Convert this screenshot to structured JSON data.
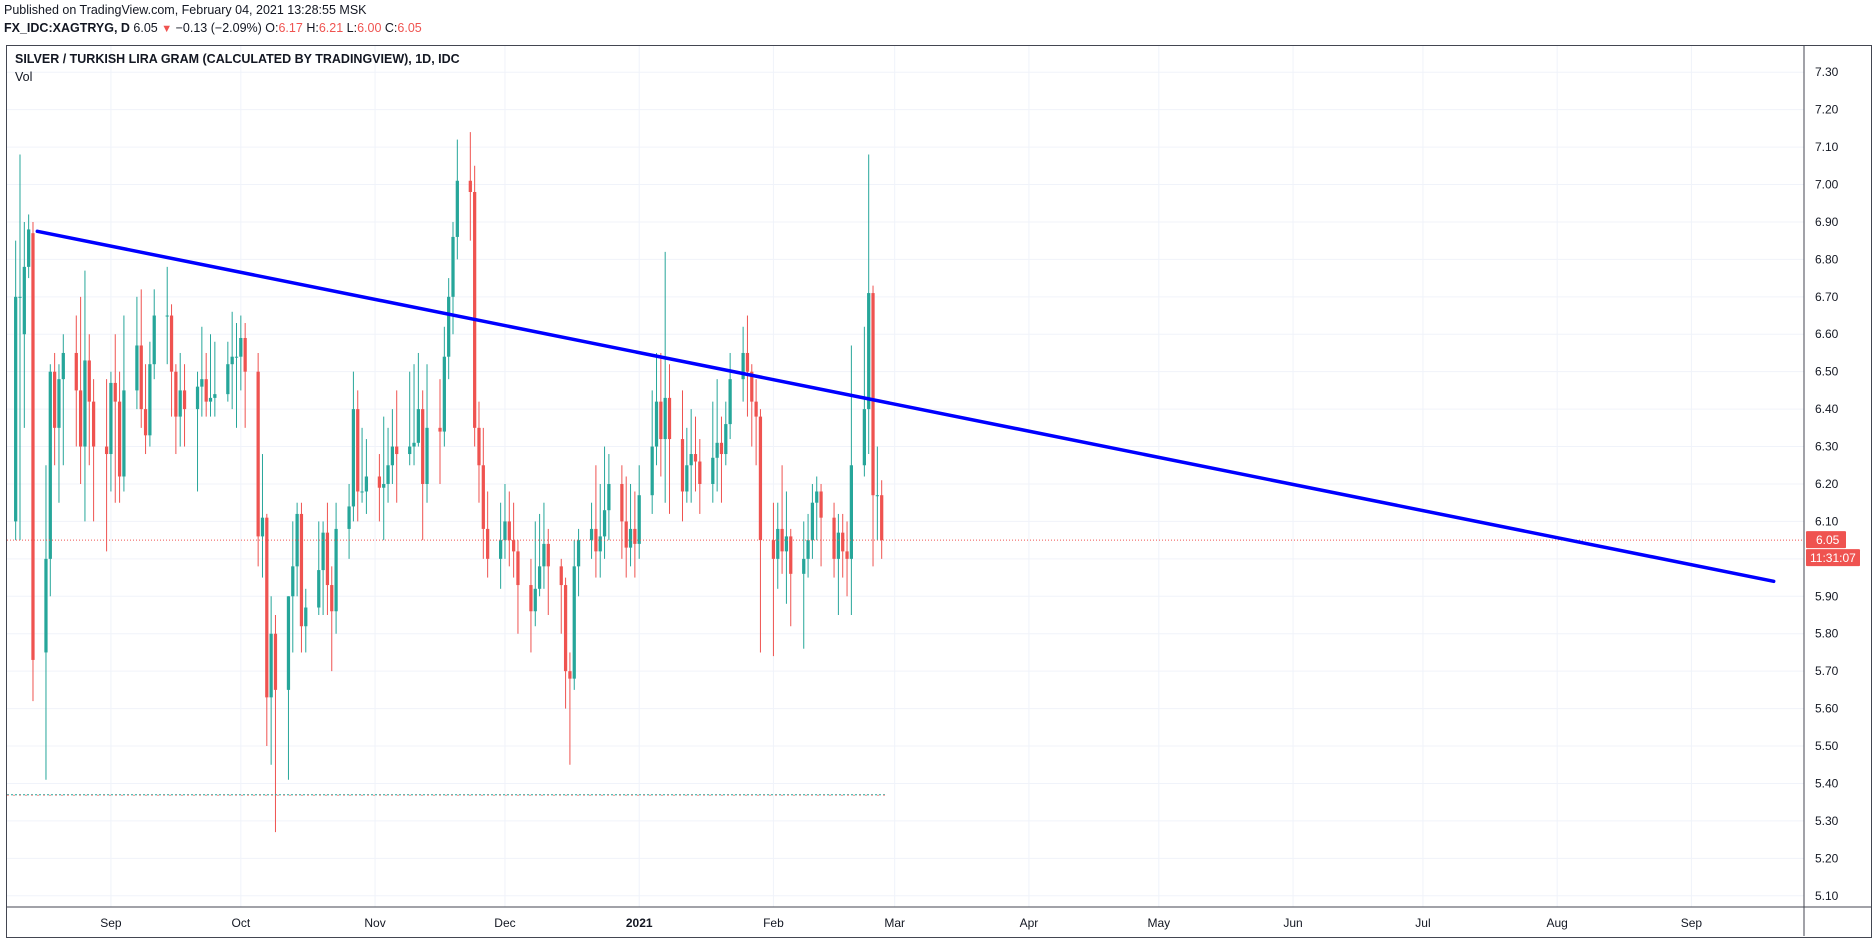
{
  "header": {
    "published": "Published on TradingView.com, February 04, 2021 13:28:55 MSK",
    "symbol": "FX_IDC:XAGTRYG, D",
    "last": "6.05",
    "change": "−0.13 (−2.09%)",
    "o_label": "O:",
    "o_val": "6.17",
    "h_label": "H:",
    "h_val": "6.21",
    "l_label": "L:",
    "l_val": "6.00",
    "c_label": "C:",
    "c_val": "6.05"
  },
  "chart_title": "SILVER / TURKISH LIRA GRAM (CALCULATED BY TRADINGVIEW), 1D, IDC",
  "indicator_label": "Vol",
  "colors": {
    "up": "#26a69a",
    "down": "#ef5350",
    "trendline": "#0000ff",
    "grid": "#f0f3fa",
    "price_tag": "#ef5350"
  },
  "chart_data": {
    "type": "candlestick",
    "title": "SILVER / TURKISH LIRA GRAM (CALCULATED BY TRADINGVIEW), 1D, IDC",
    "y_ticks": [
      "7.30",
      "7.20",
      "7.10",
      "7.00",
      "6.90",
      "6.80",
      "6.70",
      "6.60",
      "6.50",
      "6.40",
      "6.30",
      "6.20",
      "6.10",
      "6.00",
      "5.90",
      "5.80",
      "5.70",
      "5.60",
      "5.50",
      "5.40",
      "5.30",
      "5.20",
      "5.10"
    ],
    "ylim": [
      5.07,
      7.37
    ],
    "x_ticks": [
      {
        "label": "Sep",
        "date": "2020-09-01",
        "bold": false
      },
      {
        "label": "Oct",
        "date": "2020-10-01",
        "bold": false
      },
      {
        "label": "Nov",
        "date": "2020-11-01",
        "bold": false
      },
      {
        "label": "Dec",
        "date": "2020-12-01",
        "bold": false
      },
      {
        "label": "2021",
        "date": "2021-01-01",
        "bold": true
      },
      {
        "label": "Feb",
        "date": "2021-02-01",
        "bold": false
      },
      {
        "label": "Mar",
        "date": "2021-03-01",
        "bold": false
      },
      {
        "label": "Apr",
        "date": "2021-04-01",
        "bold": false
      },
      {
        "label": "May",
        "date": "2021-05-01",
        "bold": false
      },
      {
        "label": "Jun",
        "date": "2021-06-01",
        "bold": false
      },
      {
        "label": "Jul",
        "date": "2021-07-01",
        "bold": false
      },
      {
        "label": "Aug",
        "date": "2021-08-01",
        "bold": false
      },
      {
        "label": "Sep",
        "date": "2021-09-01",
        "bold": false
      }
    ],
    "xlim": [
      "2020-08-08",
      "2021-09-27"
    ],
    "first_candle_date": "2020-08-10",
    "candles": [
      [
        6.1,
        6.7,
        6.85,
        6.05
      ],
      [
        6.7,
        6.7,
        7.08,
        6.05
      ],
      [
        6.6,
        6.78,
        6.9,
        6.35
      ],
      [
        6.78,
        6.88,
        6.92,
        6.75
      ],
      [
        6.87,
        5.73,
        6.9,
        5.62
      ],
      [
        5.75,
        6.0,
        6.25,
        5.41
      ],
      [
        6.0,
        6.5,
        6.52,
        5.9
      ],
      [
        6.5,
        6.35,
        6.55,
        6.25
      ],
      [
        6.35,
        6.48,
        6.52,
        6.15
      ],
      [
        6.48,
        6.55,
        6.6,
        6.25
      ],
      [
        6.55,
        6.45,
        6.65,
        6.3
      ],
      [
        6.45,
        6.3,
        6.7,
        6.2
      ],
      [
        6.3,
        6.53,
        6.77,
        6.1
      ],
      [
        6.53,
        6.42,
        6.6,
        6.25
      ],
      [
        6.42,
        6.3,
        6.48,
        6.1
      ],
      [
        6.3,
        6.28,
        6.48,
        6.02
      ],
      [
        6.28,
        6.47,
        6.5,
        6.18
      ],
      [
        6.47,
        6.42,
        6.6,
        6.15
      ],
      [
        6.42,
        6.22,
        6.5,
        6.15
      ],
      [
        6.22,
        6.45,
        6.65,
        6.18
      ],
      [
        6.45,
        6.57,
        6.7,
        6.4
      ],
      [
        6.57,
        6.4,
        6.72,
        6.35
      ],
      [
        6.4,
        6.33,
        6.52,
        6.28
      ],
      [
        6.33,
        6.52,
        6.58,
        6.3
      ],
      [
        6.52,
        6.65,
        6.72,
        6.48
      ],
      [
        6.65,
        6.65,
        6.78,
        6.52
      ],
      [
        6.65,
        6.5,
        6.68,
        6.38
      ],
      [
        6.5,
        6.38,
        6.52,
        6.28
      ],
      [
        6.38,
        6.45,
        6.55,
        6.3
      ],
      [
        6.45,
        6.4,
        6.52,
        6.3
      ],
      [
        6.4,
        6.46,
        6.5,
        6.18
      ],
      [
        6.46,
        6.48,
        6.62,
        6.38
      ],
      [
        6.48,
        6.42,
        6.55,
        6.38
      ],
      [
        6.42,
        6.43,
        6.6,
        6.38
      ],
      [
        6.43,
        6.44,
        6.58,
        6.38
      ],
      [
        6.44,
        6.52,
        6.58,
        6.42
      ],
      [
        6.52,
        6.54,
        6.66,
        6.4
      ],
      [
        6.54,
        6.54,
        6.63,
        6.35
      ],
      [
        6.54,
        6.59,
        6.65,
        6.45
      ],
      [
        6.59,
        6.5,
        6.63,
        6.35
      ],
      [
        6.5,
        6.06,
        6.55,
        5.98
      ],
      [
        6.06,
        6.11,
        6.28,
        5.95
      ],
      [
        6.11,
        5.63,
        6.12,
        5.5
      ],
      [
        5.63,
        5.8,
        5.9,
        5.45
      ],
      [
        5.8,
        5.65,
        5.85,
        5.27
      ],
      [
        5.65,
        5.9,
        5.9,
        5.41
      ],
      [
        5.9,
        5.98,
        6.1,
        5.75
      ],
      [
        5.98,
        6.12,
        6.15,
        5.9
      ],
      [
        6.12,
        5.82,
        6.15,
        5.75
      ],
      [
        5.82,
        5.87,
        5.92,
        5.75
      ],
      [
        5.87,
        5.97,
        6.1,
        5.85
      ],
      [
        5.97,
        6.07,
        6.1,
        5.85
      ],
      [
        6.07,
        5.93,
        6.15,
        5.85
      ],
      [
        5.93,
        5.86,
        5.98,
        5.7
      ],
      [
        5.86,
        6.08,
        6.15,
        5.8
      ],
      [
        6.08,
        6.14,
        6.2,
        6.0
      ],
      [
        6.14,
        6.4,
        6.5,
        6.1
      ],
      [
        6.4,
        6.18,
        6.45,
        6.1
      ],
      [
        6.18,
        6.18,
        6.35,
        6.15
      ],
      [
        6.18,
        6.22,
        6.32,
        6.12
      ],
      [
        6.22,
        6.19,
        6.28,
        6.1
      ],
      [
        6.19,
        6.2,
        6.38,
        6.05
      ],
      [
        6.2,
        6.25,
        6.35,
        6.15
      ],
      [
        6.25,
        6.3,
        6.4,
        6.2
      ],
      [
        6.3,
        6.28,
        6.45,
        6.15
      ],
      [
        6.28,
        6.3,
        6.5,
        6.25
      ],
      [
        6.3,
        6.31,
        6.52,
        6.25
      ],
      [
        6.31,
        6.4,
        6.55,
        6.3
      ],
      [
        6.4,
        6.2,
        6.45,
        6.05
      ],
      [
        6.2,
        6.35,
        6.52,
        6.15
      ],
      [
        6.35,
        6.34,
        6.48,
        6.2
      ],
      [
        6.34,
        6.54,
        6.62,
        6.3
      ],
      [
        6.54,
        6.7,
        6.75,
        6.48
      ],
      [
        6.7,
        6.86,
        6.9,
        6.6
      ],
      [
        6.86,
        7.01,
        7.12,
        6.8
      ],
      [
        7.01,
        6.98,
        7.14,
        6.85
      ],
      [
        6.98,
        6.35,
        7.05,
        6.3
      ],
      [
        6.35,
        6.25,
        6.42,
        6.15
      ],
      [
        6.25,
        6.08,
        6.35,
        6.0
      ],
      [
        6.08,
        6.0,
        6.18,
        5.95
      ],
      [
        6.0,
        6.05,
        6.15,
        5.92
      ],
      [
        6.05,
        6.1,
        6.2,
        6.0
      ],
      [
        6.1,
        6.05,
        6.18,
        5.98
      ],
      [
        6.05,
        6.02,
        6.15,
        5.95
      ],
      [
        6.02,
        5.93,
        6.05,
        5.8
      ],
      [
        5.93,
        5.86,
        6.0,
        5.75
      ],
      [
        5.86,
        5.92,
        6.1,
        5.82
      ],
      [
        5.92,
        5.98,
        6.12,
        5.9
      ],
      [
        5.98,
        6.04,
        6.15,
        5.92
      ],
      [
        6.04,
        5.98,
        6.08,
        5.85
      ],
      [
        5.98,
        5.93,
        6.0,
        5.8
      ],
      [
        5.93,
        5.7,
        5.95,
        5.6
      ],
      [
        5.7,
        5.68,
        5.75,
        5.45
      ],
      [
        5.68,
        5.98,
        6.05,
        5.65
      ],
      [
        5.98,
        6.05,
        6.08,
        5.9
      ],
      [
        6.05,
        6.08,
        6.15,
        6.0
      ],
      [
        6.08,
        6.02,
        6.25,
        5.95
      ],
      [
        6.02,
        6.06,
        6.2,
        5.95
      ],
      [
        6.06,
        6.13,
        6.3,
        6.0
      ],
      [
        6.13,
        6.2,
        6.28,
        6.05
      ],
      [
        6.2,
        6.1,
        6.25,
        6.0
      ],
      [
        6.1,
        6.03,
        6.22,
        5.95
      ],
      [
        6.03,
        6.08,
        6.2,
        5.98
      ],
      [
        6.08,
        6.04,
        6.18,
        5.95
      ],
      [
        6.04,
        6.17,
        6.25,
        6.0
      ],
      [
        6.17,
        6.3,
        6.45,
        6.12
      ],
      [
        6.3,
        6.42,
        6.55,
        6.25
      ],
      [
        6.42,
        6.32,
        6.55,
        6.22
      ],
      [
        6.32,
        6.43,
        6.82,
        6.15
      ],
      [
        6.43,
        6.32,
        6.52,
        6.12
      ],
      [
        6.32,
        6.18,
        6.45,
        6.1
      ],
      [
        6.18,
        6.25,
        6.35,
        6.15
      ],
      [
        6.25,
        6.28,
        6.4,
        6.15
      ],
      [
        6.28,
        6.26,
        6.38,
        6.18
      ],
      [
        6.26,
        6.2,
        6.32,
        6.12
      ],
      [
        6.2,
        6.27,
        6.42,
        6.15
      ],
      [
        6.27,
        6.31,
        6.48,
        6.18
      ],
      [
        6.31,
        6.28,
        6.38,
        6.15
      ],
      [
        6.28,
        6.36,
        6.42,
        6.25
      ],
      [
        6.36,
        6.48,
        6.55,
        6.32
      ],
      [
        6.48,
        6.55,
        6.62,
        6.42
      ],
      [
        6.55,
        6.5,
        6.65,
        6.38
      ],
      [
        6.5,
        6.42,
        6.52,
        6.3
      ],
      [
        6.42,
        6.38,
        6.48,
        6.25
      ],
      [
        6.38,
        6.05,
        6.4,
        5.75
      ],
      [
        6.05,
        6.0,
        6.15,
        5.74
      ],
      [
        6.0,
        6.08,
        6.15,
        5.92
      ],
      [
        6.08,
        6.02,
        6.25,
        5.96
      ],
      [
        6.02,
        6.06,
        6.18,
        5.88
      ],
      [
        6.06,
        5.96,
        6.08,
        5.82
      ],
      [
        5.96,
        6.0,
        6.1,
        5.76
      ],
      [
        6.0,
        6.05,
        6.12,
        5.95
      ],
      [
        6.05,
        6.15,
        6.2,
        6.0
      ],
      [
        6.15,
        6.18,
        6.22,
        6.05
      ],
      [
        6.18,
        6.11,
        6.2,
        5.98
      ],
      [
        6.11,
        6.0,
        6.15,
        5.95
      ],
      [
        6.0,
        6.07,
        6.12,
        5.85
      ],
      [
        6.07,
        6.02,
        6.12,
        5.95
      ],
      [
        6.02,
        6.0,
        6.1,
        5.9
      ],
      [
        6.0,
        6.25,
        6.57,
        5.85
      ],
      [
        6.25,
        6.4,
        6.62,
        6.22
      ],
      [
        6.4,
        6.71,
        7.08,
        6.28
      ],
      [
        6.71,
        6.17,
        6.73,
        5.98
      ],
      [
        6.17,
        6.17,
        6.3,
        6.05
      ],
      [
        6.17,
        6.05,
        6.21,
        6.0
      ]
    ],
    "trendline": [
      {
        "date": "2020-08-15",
        "price": 6.875
      },
      {
        "date": "2021-09-20",
        "price": 5.94
      }
    ],
    "support_level": 5.37,
    "last_price": {
      "value": 6.05,
      "label": "6.05",
      "countdown": "11:31:07"
    }
  }
}
